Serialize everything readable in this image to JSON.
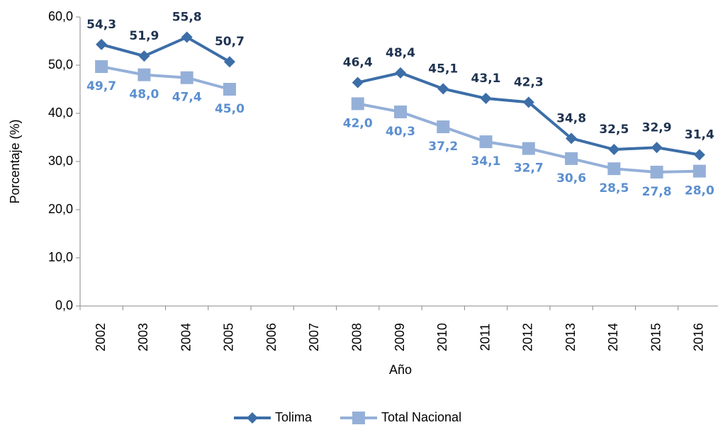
{
  "chart_data": {
    "type": "line",
    "x_label": "Año",
    "y_label": "Porcentaje (%)",
    "categories": [
      "2002",
      "2003",
      "2004",
      "2005",
      "2006",
      "2007",
      "2008",
      "2009",
      "2010",
      "2011",
      "2012",
      "2013",
      "2014",
      "2015",
      "2016"
    ],
    "series": [
      {
        "name": "Tolima",
        "color": "#3c6ea8",
        "label_color": "#1f3350",
        "marker": "diamond",
        "values": [
          54.3,
          51.9,
          55.8,
          50.7,
          null,
          null,
          46.4,
          48.4,
          45.1,
          43.1,
          42.3,
          34.8,
          32.5,
          32.9,
          31.4
        ],
        "value_labels": [
          "54,3",
          "51,9",
          "55,8",
          "50,7",
          null,
          null,
          "46,4",
          "48,4",
          "45,1",
          "43,1",
          "42,3",
          "34,8",
          "32,5",
          "32,9",
          "31,4"
        ]
      },
      {
        "name": "Total Nacional",
        "color": "#95b0d8",
        "label_color": "#5b8fd0",
        "marker": "square",
        "values": [
          49.7,
          48.0,
          47.4,
          45.0,
          null,
          null,
          42.0,
          40.3,
          37.2,
          34.1,
          32.7,
          30.6,
          28.5,
          27.8,
          28.0
        ],
        "value_labels": [
          "49,7",
          "48,0",
          "47,4",
          "45,0",
          null,
          null,
          "42,0",
          "40,3",
          "37,2",
          "34,1",
          "32,7",
          "30,6",
          "28,5",
          "27,8",
          "28,0"
        ]
      }
    ],
    "ylim": [
      0,
      60
    ],
    "yticks": [
      {
        "value": 0,
        "label": "0,0"
      },
      {
        "value": 10,
        "label": "10,0"
      },
      {
        "value": 20,
        "label": "20,0"
      },
      {
        "value": 30,
        "label": "30,0"
      },
      {
        "value": 40,
        "label": "40,0"
      },
      {
        "value": 50,
        "label": "50,0"
      },
      {
        "value": 60,
        "label": "60,0"
      }
    ],
    "legend": "bottom",
    "grid": false
  }
}
